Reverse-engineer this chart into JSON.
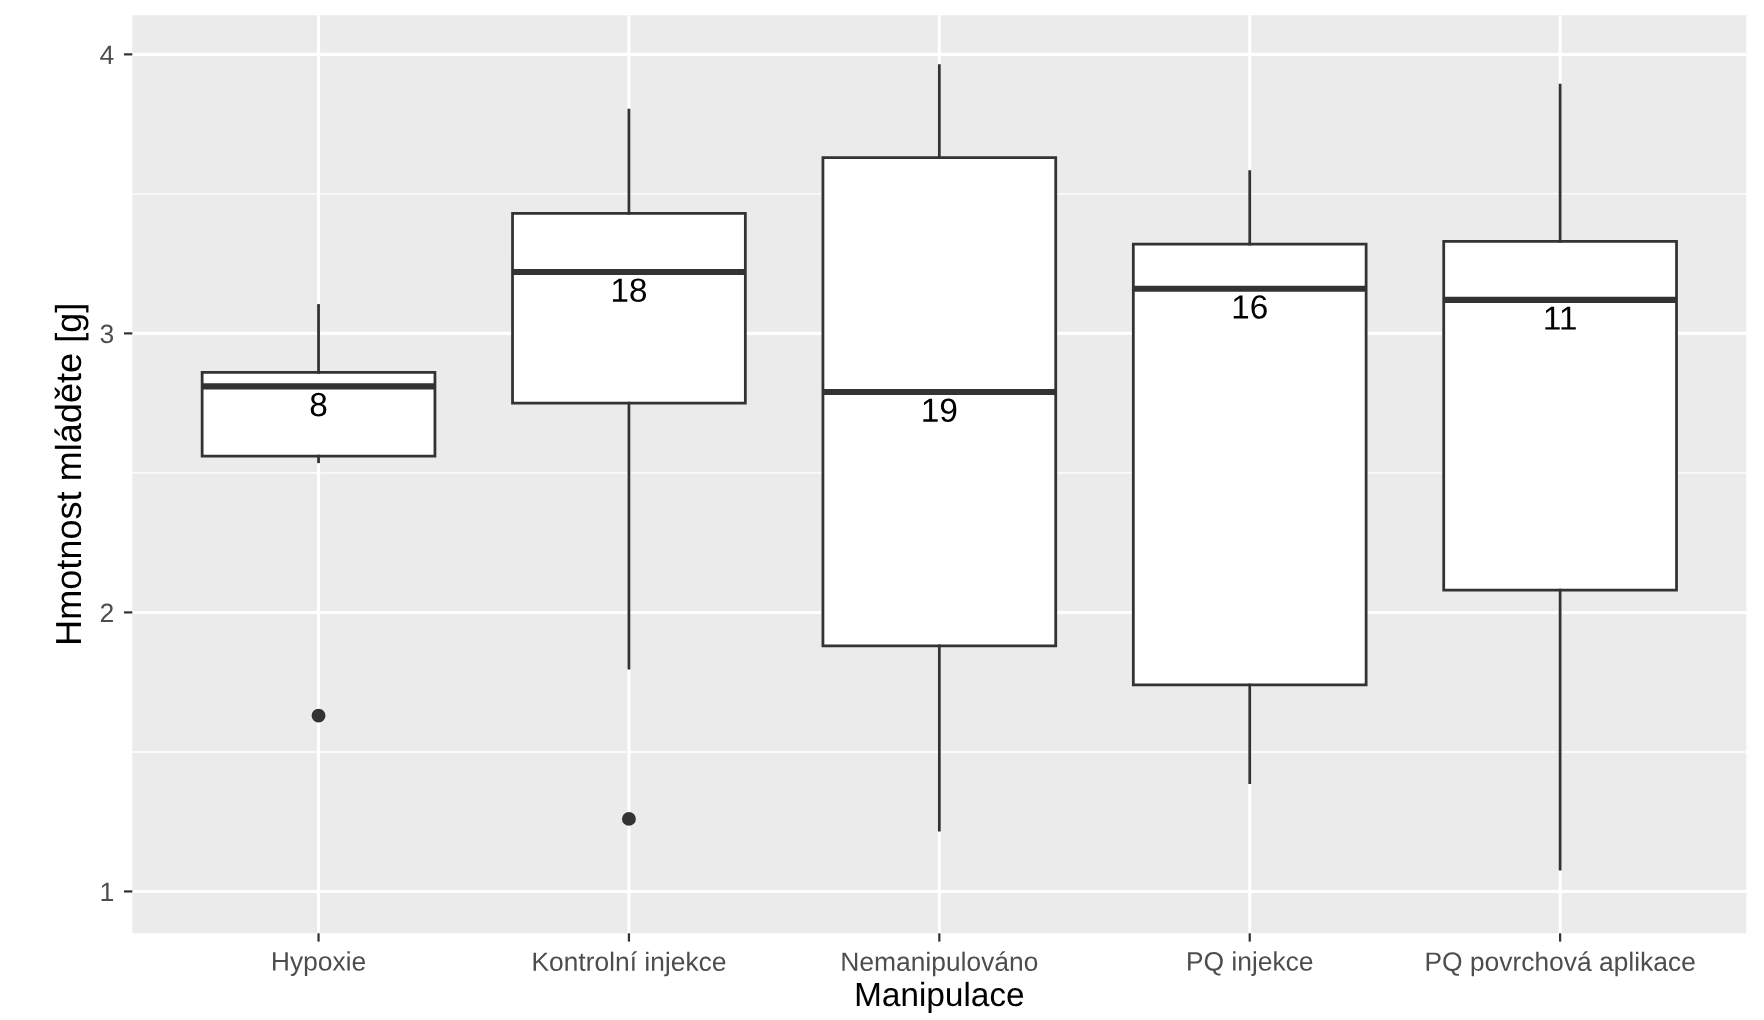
{
  "chart_data": {
    "type": "box",
    "xlabel": "Manipulace",
    "ylabel": "Hmotnost mláděte [g]",
    "categories": [
      "Hypoxie",
      "Kontrolní injekce",
      "Nemanipulováno",
      "PQ injekce",
      "PQ povrchová aplikace"
    ],
    "boxes": [
      {
        "low": 2.54,
        "q1": 2.56,
        "median": 2.81,
        "q3": 2.86,
        "high": 3.1,
        "outliers": [
          1.63
        ]
      },
      {
        "low": 1.8,
        "q1": 2.75,
        "median": 3.22,
        "q3": 3.43,
        "high": 3.8,
        "outliers": [
          1.26
        ]
      },
      {
        "low": 1.22,
        "q1": 1.88,
        "median": 2.79,
        "q3": 3.63,
        "high": 3.96
      },
      {
        "low": 1.39,
        "q1": 1.74,
        "median": 3.16,
        "q3": 3.32,
        "high": 3.58
      },
      {
        "low": 1.08,
        "q1": 2.08,
        "median": 3.12,
        "q3": 3.33,
        "high": 3.89
      }
    ],
    "annotations": [
      "8",
      "18",
      "19",
      "16",
      "11"
    ],
    "ylim": [
      0.85,
      4.14
    ],
    "yticks": [
      1,
      2,
      3,
      4
    ],
    "grid": true
  }
}
